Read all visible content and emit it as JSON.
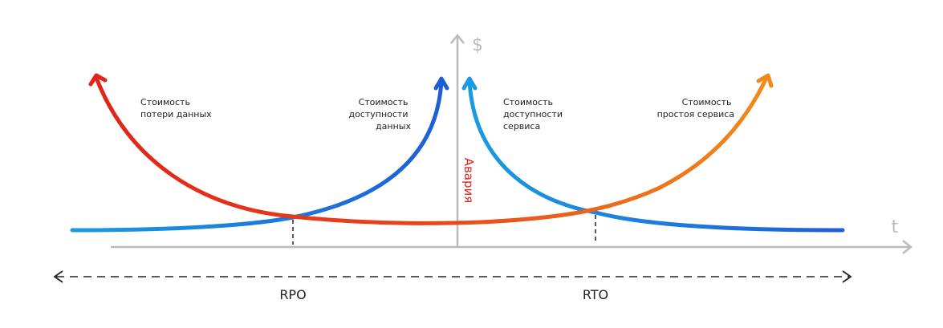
{
  "axes": {
    "y_label": "$",
    "x_label": "t"
  },
  "curves": [
    {
      "label_lines": [
        "Стоимость",
        "потери данных"
      ]
    },
    {
      "label_lines": [
        "Стоимость",
        "доступности",
        "данных"
      ]
    },
    {
      "label_lines": [
        "Стоимость",
        "доступности",
        "сервиса"
      ]
    },
    {
      "label_lines": [
        "Стоимость",
        "простоя сервиса"
      ]
    }
  ],
  "event": "Авария",
  "intervals": [
    "RPO",
    "RTO"
  ]
}
